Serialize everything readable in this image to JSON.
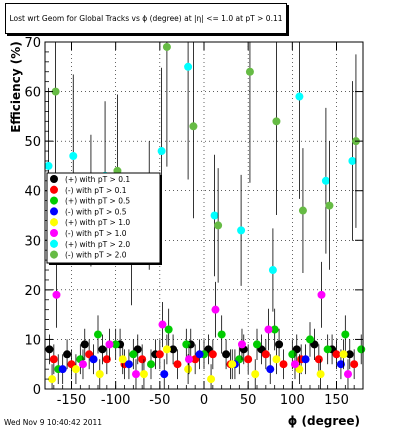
{
  "chart_data": {
    "type": "scatter",
    "title": "Lost wrt Geom for Global Tracks vs ϕ (degree) at |η| <= 1.0 at pT > 0.11",
    "xlabel": "ϕ (degree)",
    "ylabel": "Efficiency (%)",
    "xlim": [
      -180,
      180
    ],
    "ylim": [
      0,
      70
    ],
    "x_ticks": [
      "-150",
      "-100",
      "-50",
      "0",
      "50",
      "100",
      "150"
    ],
    "y_ticks": [
      "0",
      "10",
      "20",
      "30",
      "40",
      "50",
      "60",
      "70"
    ],
    "grid": true,
    "legend_position": "left",
    "legend": [
      {
        "label": "(+) with pT > 0.1",
        "color": "#000000"
      },
      {
        "label": "(-) with pT > 0.1",
        "color": "#ff0000"
      },
      {
        "label": "(+) with pT > 0.5",
        "color": "#00cc00"
      },
      {
        "label": "(-) with pT > 0.5",
        "color": "#0000ff"
      },
      {
        "label": "(+) with pT > 1.0",
        "color": "#ffff00"
      },
      {
        "label": "(-) with pT > 1.0",
        "color": "#ff00ff"
      },
      {
        "label": "(+) with pT > 2.0",
        "color": "#00ffff"
      },
      {
        "label": "(-) with pT > 2.0",
        "color": "#66bb44"
      }
    ],
    "series": [
      {
        "name": "(+) with pT > 0.1",
        "color": "#000000",
        "x": [
          -175,
          -155,
          -135,
          -115,
          -95,
          -75,
          -55,
          -35,
          -15,
          5,
          25,
          45,
          65,
          85,
          105,
          125,
          145,
          165
        ],
        "y": [
          8,
          7,
          9,
          8,
          9,
          8,
          7,
          8,
          9,
          8,
          7,
          8,
          8,
          9,
          8,
          9,
          8,
          7
        ]
      },
      {
        "name": "(-) with pT > 0.1",
        "color": "#ff0000",
        "x": [
          -170,
          -150,
          -130,
          -110,
          -90,
          -70,
          -50,
          -30,
          -10,
          10,
          30,
          50,
          70,
          90,
          110,
          130,
          150,
          170
        ],
        "y": [
          6,
          5,
          7,
          6,
          5,
          6,
          7,
          5,
          6,
          7,
          5,
          6,
          7,
          5,
          6,
          6,
          7,
          5
        ]
      },
      {
        "name": "(+) with pT > 0.5",
        "color": "#00cc00",
        "x": [
          -165,
          -140,
          -120,
          -100,
          -80,
          -60,
          -40,
          -20,
          0,
          20,
          40,
          60,
          80,
          100,
          120,
          140,
          160,
          178
        ],
        "y": [
          4,
          6,
          11,
          9,
          7,
          5,
          12,
          9,
          7,
          11,
          6,
          9,
          12,
          7,
          10,
          8,
          11,
          8
        ]
      },
      {
        "name": "(-) with pT > 0.5",
        "color": "#0000ff",
        "x": [
          -160,
          -125,
          -85,
          -45,
          -5,
          35,
          75,
          115,
          155
        ],
        "y": [
          4,
          6,
          5,
          3,
          7,
          5,
          4,
          6,
          5
        ]
      },
      {
        "name": "(+) with pT > 1.0",
        "color": "#ffff00",
        "x": [
          -172,
          -145,
          -118,
          -92,
          -68,
          -42,
          -18,
          8,
          32,
          58,
          82,
          108,
          132,
          158
        ],
        "y": [
          2,
          4,
          3,
          6,
          3,
          8,
          4,
          2,
          5,
          3,
          6,
          4,
          3,
          7
        ]
      },
      {
        "name": "(-) with pT > 1.0",
        "color": "#ff00ff",
        "x": [
          -167,
          -137,
          -107,
          -77,
          -47,
          -17,
          13,
          43,
          73,
          103,
          133,
          163
        ],
        "y": [
          19,
          5,
          9,
          3,
          13,
          6,
          16,
          9,
          12,
          5,
          19,
          3
        ]
      },
      {
        "name": "(+) with pT > 2.0",
        "color": "#00ffff",
        "x": [
          -176,
          -148,
          -112,
          -82,
          -48,
          -18,
          12,
          42,
          78,
          108,
          138,
          168
        ],
        "y": [
          45,
          47,
          43,
          26,
          48,
          65,
          35,
          32,
          24,
          59,
          42,
          46
        ]
      },
      {
        "name": "(-) with pT > 2.0",
        "color": "#66bb44",
        "x": [
          -168,
          -128,
          -98,
          -62,
          -42,
          -12,
          16,
          52,
          82,
          112,
          142,
          172
        ],
        "y": [
          60,
          38,
          44,
          37,
          69,
          53,
          33,
          64,
          54,
          36,
          37,
          50
        ]
      }
    ]
  },
  "footer_text": "Wed Nov  9 10:40:42 2011"
}
